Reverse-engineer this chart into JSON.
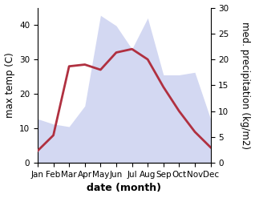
{
  "months": [
    "Jan",
    "Feb",
    "Mar",
    "Apr",
    "May",
    "Jun",
    "Jul",
    "Aug",
    "Sep",
    "Oct",
    "Nov",
    "Dec"
  ],
  "month_indices": [
    0,
    1,
    2,
    3,
    4,
    5,
    6,
    7,
    8,
    9,
    10,
    11
  ],
  "temperature": [
    3.5,
    8.0,
    28.0,
    28.5,
    27.0,
    32.0,
    33.0,
    30.0,
    22.0,
    15.0,
    9.0,
    4.5
  ],
  "precipitation": [
    8.5,
    7.5,
    7.0,
    11.0,
    28.5,
    26.5,
    22.0,
    28.0,
    17.0,
    17.0,
    17.5,
    8.5
  ],
  "temp_ylim": [
    0,
    45
  ],
  "precip_ylim": [
    0,
    30
  ],
  "temp_yticks": [
    0,
    10,
    20,
    30,
    40
  ],
  "precip_yticks": [
    0,
    5,
    10,
    15,
    20,
    25,
    30
  ],
  "xlabel": "date (month)",
  "ylabel_left": "max temp (C)",
  "ylabel_right": "med. precipitation (kg/m2)",
  "fill_color": "#b0b8e8",
  "fill_alpha": 0.55,
  "line_color": "#b03040",
  "line_width": 2.0,
  "bg_color": "#ffffff",
  "label_fontsize": 8.5,
  "tick_fontsize": 7.5,
  "xlabel_fontsize": 9
}
